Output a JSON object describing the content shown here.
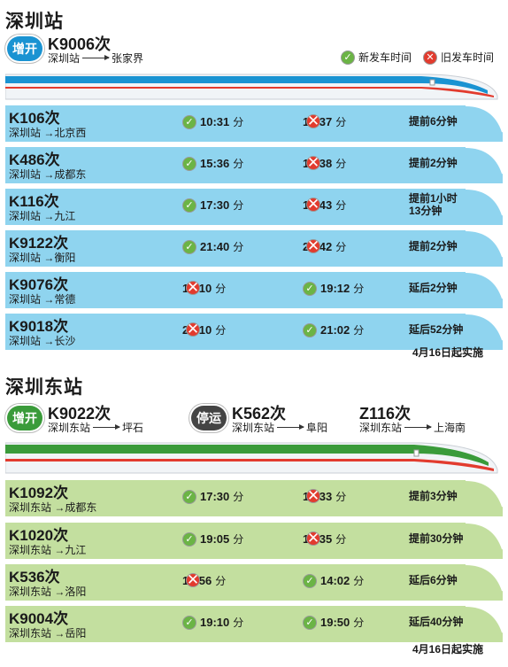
{
  "colors": {
    "blue_row": "#8fd4ef",
    "green_row": "#c3df9f",
    "blue_badge": "#1a93d2",
    "green_badge": "#3a9b3a",
    "ok": "#6bb445",
    "no": "#e23b2e"
  },
  "legend": {
    "new_time": "新发车时间",
    "old_time": "旧发车时间"
  },
  "shenzhen": {
    "title": "深圳站",
    "new_train": {
      "badge": "增开",
      "no": "K9006次",
      "from": "深圳站",
      "to": "张家界"
    },
    "rows": [
      {
        "no": "K106次",
        "route": "深圳站 →北京西",
        "t1": "10:31",
        "t1_icon": "ok",
        "t2": "10:37",
        "t2_icon": "no",
        "note": "提前6分钟"
      },
      {
        "no": "K486次",
        "route": "深圳站 →成都东",
        "t1": "15:36",
        "t1_icon": "ok",
        "t2": "15:38",
        "t2_icon": "no",
        "note": "提前2分钟"
      },
      {
        "no": "K116次",
        "route": "深圳站 →九江",
        "t1": "17:30",
        "t1_icon": "ok",
        "t2": "18:43",
        "t2_icon": "no",
        "note": "提前1小时",
        "note2": "13分钟"
      },
      {
        "no": "K9122次",
        "route": "深圳站 →衡阳",
        "t1": "21:40",
        "t1_icon": "ok",
        "t2": "21:42",
        "t2_icon": "no",
        "note": "提前2分钟"
      },
      {
        "no": "K9076次",
        "route": "深圳站 →常德",
        "t1": "19:10",
        "t1_icon": "no",
        "t2": "19:12",
        "t2_icon": "ok",
        "note": "延后2分钟"
      },
      {
        "no": "K9018次",
        "route": "深圳站 →长沙",
        "t1": "20:10",
        "t1_icon": "no",
        "t2": "21:02",
        "t2_icon": "ok",
        "note": "延后52分钟"
      }
    ],
    "effective": "4月16日起实施"
  },
  "shenzhen_east": {
    "title": "深圳东站",
    "new_train": {
      "badge": "增开",
      "no": "K9022次",
      "from": "深圳东站",
      "to": "坪石"
    },
    "stopped_train": {
      "badge": "停运",
      "no": "K562次",
      "from": "深圳东站",
      "to": "阜阳"
    },
    "third_train": {
      "no": "Z116次",
      "from": "深圳东站",
      "to": "上海南"
    },
    "rows": [
      {
        "no": "K1092次",
        "route": "深圳东站 →成都东",
        "t1": "17:30",
        "t1_icon": "ok",
        "t2": "17:33",
        "t2_icon": "no",
        "note": "提前3分钟"
      },
      {
        "no": "K1020次",
        "route": "深圳东站 →九江",
        "t1": "19:05",
        "t1_icon": "ok",
        "t2": "19:35",
        "t2_icon": "no",
        "note": "提前30分钟"
      },
      {
        "no": "K536次",
        "route": "深圳东站 →洛阳",
        "t1": "13:56",
        "t1_icon": "no",
        "t2": "14:02",
        "t2_icon": "ok",
        "note": "延后6分钟"
      },
      {
        "no": "K9004次",
        "route": "深圳东站 →岳阳",
        "t1": "19:10",
        "t1_icon": "ok",
        "t2": "19:50",
        "t2_icon": "ok",
        "note": "延后40分钟"
      }
    ],
    "effective": "4月16日起实施"
  },
  "minute_unit": "分"
}
